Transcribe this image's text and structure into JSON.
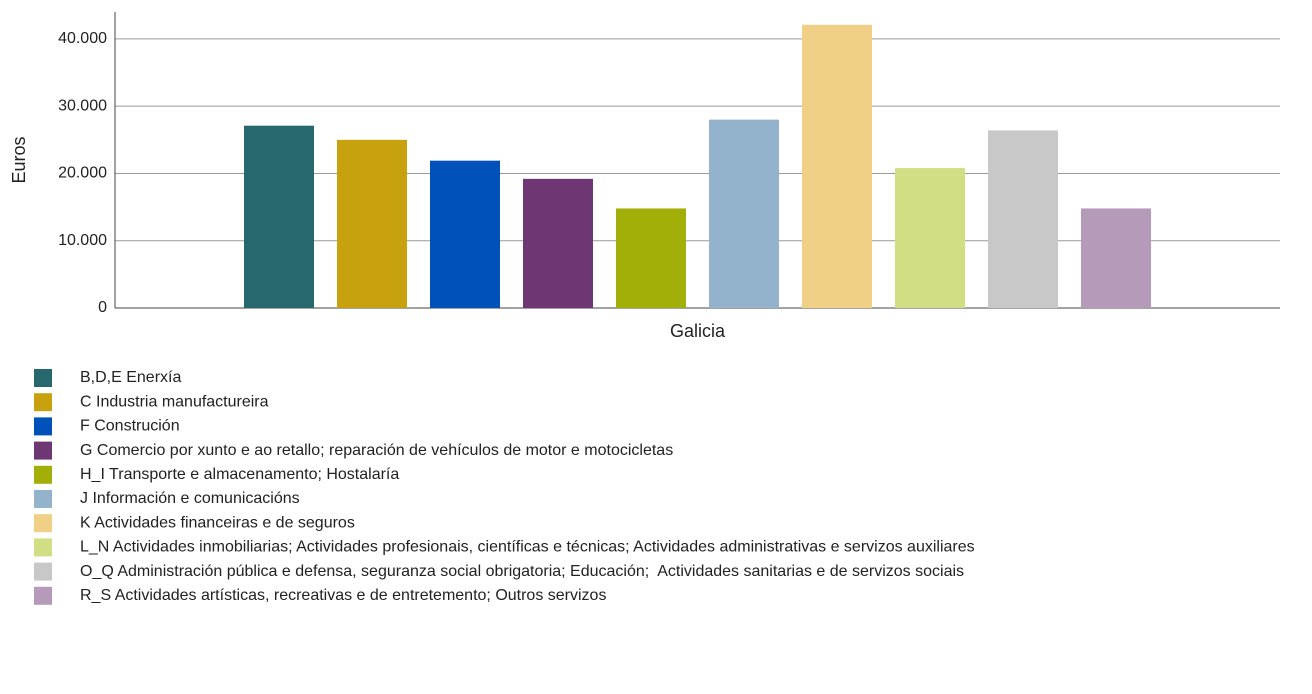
{
  "chart_data": {
    "type": "bar",
    "categories": [
      "Galicia"
    ],
    "ylabel": "Euros",
    "ylim": [
      0,
      44000
    ],
    "yticks": [
      0,
      {
        "value": 10000,
        "label": "10.000"
      },
      {
        "value": 20000,
        "label": "20.000"
      },
      {
        "value": 30000,
        "label": "30.000"
      },
      {
        "value": 40000,
        "label": "40.000"
      }
    ],
    "grid": true,
    "legend": "bottom",
    "series": [
      {
        "name": "B,D,E Enerxía",
        "color": "#26686d",
        "values": [
          27100
        ]
      },
      {
        "name": "C Industria manufactureira",
        "color": "#c8a20e",
        "values": [
          25000
        ]
      },
      {
        "name": "F Construción",
        "color": "#0051ba",
        "values": [
          21900
        ]
      },
      {
        "name": "G Comercio por xunto e ao retallo; reparación de vehículos de motor e motocicletas",
        "color": "#6e3673",
        "values": [
          19200
        ]
      },
      {
        "name": "H_I Transporte e almacenamento; Hostalaría",
        "color": "#a2af08",
        "values": [
          14800
        ]
      },
      {
        "name": "J Información e comunicacións",
        "color": "#93b2cc",
        "values": [
          28000
        ]
      },
      {
        "name": "K Actividades financeiras e de seguros",
        "color": "#f0cf87",
        "values": [
          42100
        ]
      },
      {
        "name": "L_N Actividades inmobiliarias; Actividades profesionais, científicas e técnicas; Actividades administrativas e servizos auxiliares",
        "color": "#d1de84",
        "values": [
          20800
        ]
      },
      {
        "name": "O_Q Administración pública e defensa, seguranza social obrigatoria; Educación;  Actividades sanitarias e de servizos sociais",
        "color": "#c8c8c8",
        "values": [
          26400
        ]
      },
      {
        "name": "R_S Actividades artísticas, recreativas e de entretemento; Outros servizos",
        "color": "#b69ab9",
        "values": [
          14800
        ]
      }
    ]
  }
}
